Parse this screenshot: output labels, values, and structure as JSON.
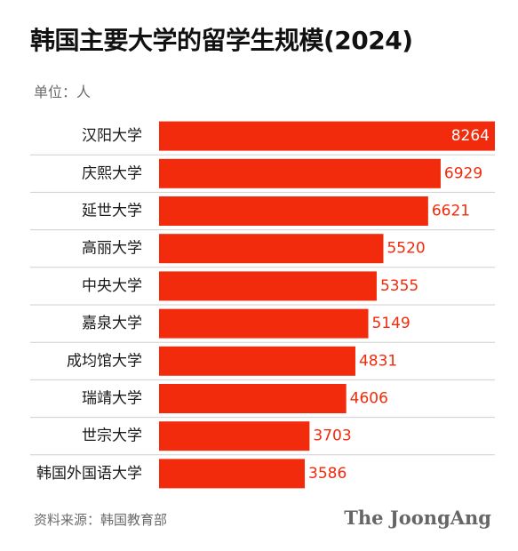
{
  "header": {
    "title": "韩国主要大学的留学生规模(2024)",
    "unit": "单位：人"
  },
  "footer": {
    "source": "资料来源：韩国教育部",
    "logo_text": "The JoongAng"
  },
  "colors": {
    "bar": "#f12b0b",
    "bar_value_inside": "#ffffff",
    "bar_value_outside": "#f12b0b",
    "separator": "#cfcfcf"
  },
  "chart_data": {
    "type": "bar",
    "orientation": "horizontal",
    "title": "韩国主要大学的留学生规模(2024)",
    "unit": "单位：人",
    "xlabel": "",
    "ylabel": "",
    "categories": [
      "汉阳大学",
      "庆熙大学",
      "延世大学",
      "高丽大学",
      "中央大学",
      "嘉泉大学",
      "成均馆大学",
      "瑞靖大学",
      "世宗大学",
      "韩国外国语大学"
    ],
    "values": [
      8264,
      6929,
      6621,
      5520,
      5355,
      5149,
      4831,
      4606,
      3703,
      3586
    ],
    "xlim": [
      0,
      8264
    ],
    "grid": false,
    "legend": "none",
    "value_labels_shown": true,
    "source": "资料来源：韩国教育部"
  }
}
